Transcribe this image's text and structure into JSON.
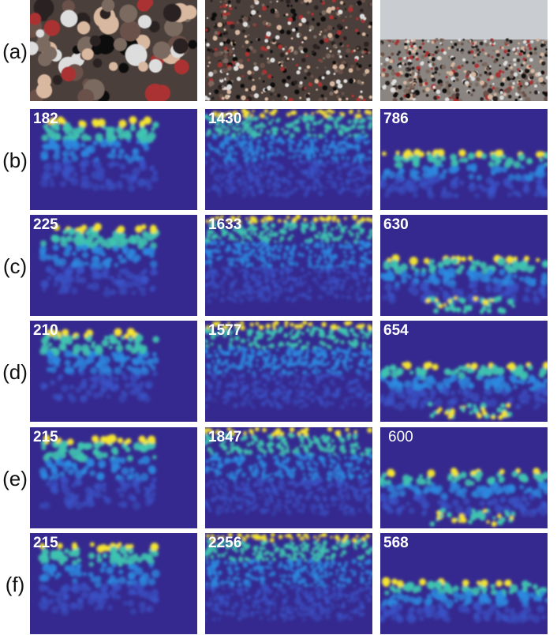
{
  "rows": [
    {
      "label": "(a)"
    },
    {
      "label": "(b)",
      "counts": [
        182,
        1430,
        786
      ]
    },
    {
      "label": "(c)",
      "counts": [
        225,
        1633,
        630
      ]
    },
    {
      "label": "(d)",
      "counts": [
        210,
        1577,
        654
      ]
    },
    {
      "label": "(e)",
      "counts": [
        215,
        1847,
        600
      ]
    },
    {
      "label": "(f)",
      "counts": [
        215,
        2256,
        568
      ]
    }
  ]
}
